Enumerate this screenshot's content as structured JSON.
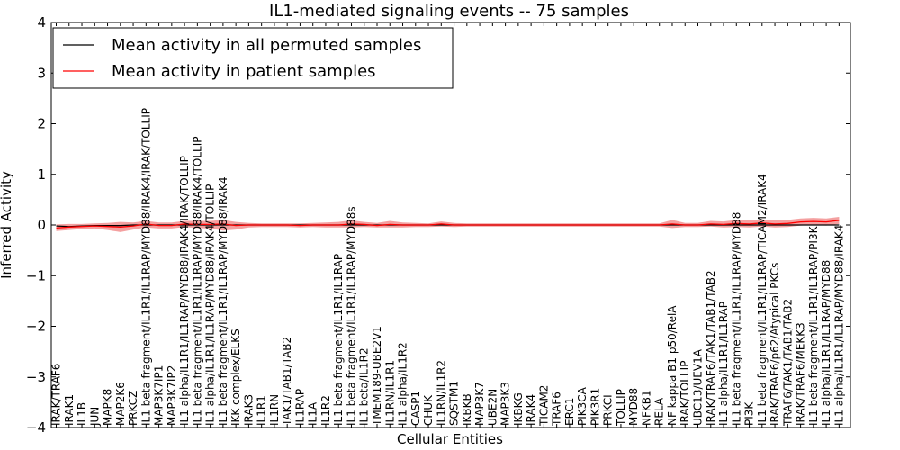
{
  "chart_data": {
    "type": "line",
    "title": "IL1-mediated signaling events -- 75 samples",
    "xlabel": "Cellular Entities",
    "ylabel": "Inferred Activity",
    "ylim": [
      -4,
      4
    ],
    "yticks": [
      "4",
      "3",
      "2",
      "1",
      "0",
      "−1",
      "−2",
      "−3",
      "−4"
    ],
    "legend_position": "top-left",
    "categories": [
      "IRAK/TRAF6",
      "IRAK1",
      "IL1B",
      "JUN",
      "MAPK8",
      "MAP2K6",
      "PRKCZ",
      "IL1 beta fragment/IL1R1/IL1RAP/MYD88/IRAK4/IRAK/TOLLIP",
      "MAP3K7IP1",
      "MAP3K7IP2",
      "IL1 alpha/IL1R1/IL1RAP/MYD88/IRAK4/IRAK/TOLLIP",
      "IL1 beta fragment/IL1R1/IL1RAP/MYD88/IRAK4/TOLLIP",
      "IL1 alpha/IL1R1/IL1RAP/MYD88/IRAK4/TOLLIP",
      "IL1 beta fragment/IL1R1/IL1RAP/MYD88/IRAK4",
      "IKK complex/ELKS",
      "IRAK3",
      "IL1R1",
      "IL1RN",
      "TAK1/TAB1/TAB2",
      "IL1RAP",
      "IL1A",
      "IL1R2",
      "IL1 beta fragment/IL1R1/IL1RAP",
      "IL1 beta fragment/IL1R1/IL1RAP/MYD88s",
      "IL1 beta/IL1R2",
      "TMEM189-UBE2V1",
      "IL1RN/IL1R1",
      "IL1 alpha/IL1R2",
      "CASP1",
      "CHUK",
      "IL1RN/IL1R2",
      "SQSTM1",
      "IKBKB",
      "MAP3K7",
      "UBE2N",
      "MAP3K3",
      "IKBKG",
      "IRAK4",
      "TICAM2",
      "TRAF6",
      "ERC1",
      "PIK3CA",
      "PIK3R1",
      "PRKCI",
      "TOLLIP",
      "MYD88",
      "NFKB1",
      "RELA",
      "NF kappa B1 p50/RelA",
      "IRAK/TOLLIP",
      "UBC13/UEV1A",
      "IRAK/TRAF6/TAK1/TAB1/TAB2",
      "IL1 alpha/IL1R1/IL1RAP",
      "IL1 beta fragment/IL1R1/IL1RAP/MYD88",
      "PI3K",
      "IL1 beta fragment/IL1R1/IL1RAP/TICAM2/IRAK4",
      "IRAK/TRAF6/p62/Atypical PKCs",
      "TRAF6/TAK1/TAB1/TAB2",
      "IRAK/TRAF6/MEKK3",
      "IL1 beta fragment/IL1R1/IL1RAP/PI3K",
      "IL1 alpha/IL1R1/IL1RAP/MYD88",
      "IL1 alpha/IL1R1/IL1RAP/MYD88/IRAK4"
    ],
    "series": [
      {
        "name": "Mean activity in all permuted samples",
        "color": "#000000",
        "values": [
          -0.02,
          -0.03,
          -0.02,
          -0.01,
          -0.01,
          -0.01,
          0,
          0,
          0,
          0,
          0,
          0,
          0,
          0,
          0,
          0,
          0,
          0,
          0,
          0,
          0,
          0,
          0,
          0,
          0,
          0,
          0,
          0,
          0,
          0,
          0,
          0,
          0,
          0,
          0,
          0,
          0,
          0,
          0,
          0,
          0,
          0,
          0,
          0,
          0,
          0,
          0,
          0,
          0,
          0,
          0,
          0,
          0,
          0,
          0,
          0,
          0,
          0,
          0,
          0,
          0,
          0
        ]
      },
      {
        "name": "Mean activity in patient samples",
        "color": "#ff0000",
        "values": [
          -0.06,
          -0.04,
          -0.03,
          -0.02,
          -0.03,
          -0.04,
          -0.02,
          0.02,
          -0.01,
          -0.01,
          0.02,
          0.01,
          0.01,
          0.02,
          -0.01,
          0,
          0,
          0,
          0,
          -0.01,
          0,
          0,
          0,
          0.02,
          0.01,
          -0.01,
          0.01,
          0,
          0,
          0,
          0.02,
          0,
          0,
          0,
          0,
          0,
          0,
          0,
          0,
          0,
          0,
          0,
          0,
          0,
          0,
          0,
          0,
          0,
          0.02,
          0,
          0,
          0.02,
          0.01,
          0.03,
          0.02,
          0.04,
          0.02,
          0.03,
          0.06,
          0.07,
          0.06,
          0.09
        ]
      }
    ],
    "band": {
      "name": "patient spread",
      "color": "#f08080",
      "upper": [
        0.01,
        0.02,
        0.02,
        0.03,
        0.04,
        0.06,
        0.05,
        0.08,
        0.05,
        0.05,
        0.08,
        0.08,
        0.08,
        0.1,
        0.06,
        0.04,
        0.03,
        0.03,
        0.03,
        0.03,
        0.04,
        0.05,
        0.06,
        0.09,
        0.06,
        0.04,
        0.08,
        0.05,
        0.04,
        0.03,
        0.07,
        0.04,
        0.03,
        0.03,
        0.03,
        0.03,
        0.03,
        0.03,
        0.03,
        0.03,
        0.03,
        0.03,
        0.03,
        0.03,
        0.03,
        0.03,
        0.03,
        0.03,
        0.1,
        0.04,
        0.04,
        0.08,
        0.07,
        0.1,
        0.09,
        0.11,
        0.09,
        0.1,
        0.13,
        0.14,
        0.13,
        0.16
      ],
      "lower": [
        -0.12,
        -0.1,
        -0.08,
        -0.07,
        -0.1,
        -0.14,
        -0.09,
        -0.05,
        -0.07,
        -0.07,
        -0.04,
        -0.06,
        -0.07,
        -0.11,
        -0.09,
        -0.05,
        -0.04,
        -0.04,
        -0.04,
        -0.05,
        -0.04,
        -0.05,
        -0.05,
        -0.05,
        -0.04,
        -0.05,
        -0.05,
        -0.05,
        -0.04,
        -0.04,
        -0.03,
        -0.04,
        -0.03,
        -0.03,
        -0.03,
        -0.03,
        -0.03,
        -0.03,
        -0.03,
        -0.03,
        -0.03,
        -0.03,
        -0.03,
        -0.03,
        -0.03,
        -0.03,
        -0.03,
        -0.03,
        -0.06,
        -0.04,
        -0.04,
        -0.03,
        -0.05,
        -0.04,
        -0.05,
        -0.03,
        -0.05,
        -0.04,
        -0.01,
        0,
        -0.01,
        0.02
      ]
    }
  }
}
